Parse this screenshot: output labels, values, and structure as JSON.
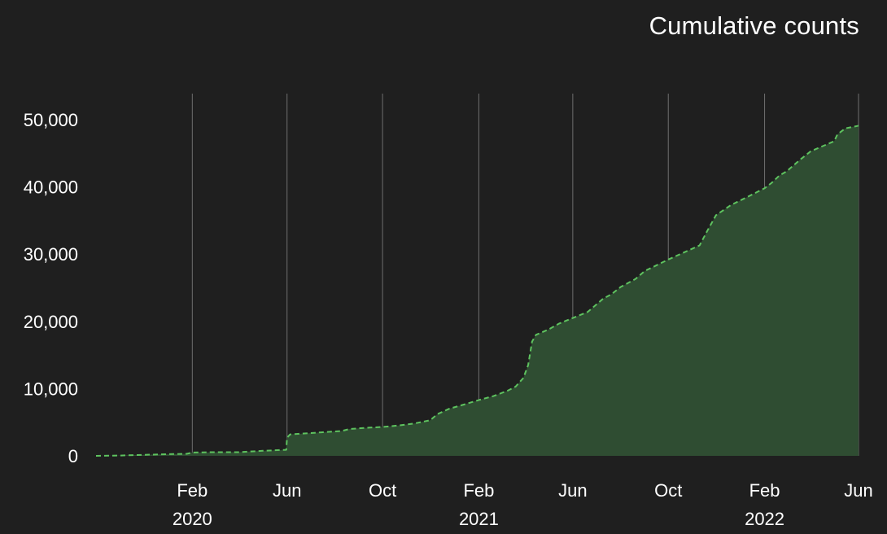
{
  "chart_data": {
    "type": "area",
    "title": "Cumulative counts",
    "xlabel": "",
    "ylabel": "",
    "colors": {
      "background": "#1f1f1f",
      "area_fill": "#2f4d32",
      "line": "#5ec35f",
      "grid": "#6f6f6f"
    },
    "grid": {
      "x": true,
      "y": false
    },
    "line_style": "dashed",
    "x_range": [
      "2019-10-01",
      "2022-06-01"
    ],
    "ylim": [
      0,
      50000
    ],
    "y_ticks": [
      0,
      10000,
      20000,
      30000,
      40000,
      50000
    ],
    "y_tick_labels": [
      "0",
      "10,000",
      "20,000",
      "30,000",
      "40,000",
      "50,000"
    ],
    "x_ticks": [
      {
        "date": "2020-02-01",
        "label": "Feb",
        "year_label": "2020"
      },
      {
        "date": "2020-06-01",
        "label": "Jun",
        "year_label": ""
      },
      {
        "date": "2020-10-01",
        "label": "Oct",
        "year_label": ""
      },
      {
        "date": "2021-02-01",
        "label": "Feb",
        "year_label": "2021"
      },
      {
        "date": "2021-06-01",
        "label": "Jun",
        "year_label": ""
      },
      {
        "date": "2021-10-01",
        "label": "Oct",
        "year_label": ""
      },
      {
        "date": "2022-02-01",
        "label": "Feb",
        "year_label": "2022"
      },
      {
        "date": "2022-06-01",
        "label": "Jun",
        "year_label": ""
      }
    ],
    "series": [
      {
        "x": [
          "2019-10-01",
          "2019-11-01",
          "2019-12-01",
          "2020-01-01",
          "2020-01-25",
          "2020-02-01",
          "2020-03-01",
          "2020-04-01",
          "2020-05-01",
          "2020-05-31",
          "2020-06-01",
          "2020-06-05",
          "2020-06-20",
          "2020-07-15",
          "2020-08-10",
          "2020-08-20",
          "2020-09-15",
          "2020-10-01",
          "2020-10-20",
          "2020-11-10",
          "2020-12-01",
          "2020-12-10",
          "2020-12-25",
          "2021-01-15",
          "2021-02-01",
          "2021-02-20",
          "2021-03-10",
          "2021-03-20",
          "2021-03-30",
          "2021-04-05",
          "2021-04-10",
          "2021-04-15",
          "2021-05-01",
          "2021-05-15",
          "2021-06-01",
          "2021-06-20",
          "2021-07-10",
          "2021-07-20",
          "2021-08-01",
          "2021-08-20",
          "2021-09-01",
          "2021-09-10",
          "2021-10-01",
          "2021-10-20",
          "2021-11-10",
          "2021-11-20",
          "2021-12-01",
          "2021-12-10",
          "2021-12-20",
          "2022-01-10",
          "2022-02-01",
          "2022-02-10",
          "2022-02-20",
          "2022-03-01",
          "2022-03-20",
          "2022-04-01",
          "2022-05-01",
          "2022-05-05",
          "2022-05-15",
          "2022-06-01"
        ],
        "values": [
          0,
          50,
          150,
          250,
          300,
          500,
          550,
          550,
          750,
          900,
          2700,
          3200,
          3300,
          3500,
          3700,
          4000,
          4200,
          4300,
          4500,
          4800,
          5300,
          6200,
          7000,
          7700,
          8300,
          8900,
          9700,
          10300,
          11600,
          13500,
          17000,
          18000,
          18800,
          19700,
          20500,
          21400,
          23400,
          24000,
          25100,
          26300,
          27500,
          28000,
          29200,
          30200,
          31300,
          33500,
          35800,
          36500,
          37300,
          38500,
          39800,
          40600,
          41700,
          42300,
          44200,
          45300,
          46800,
          47800,
          48700,
          49100
        ]
      }
    ]
  }
}
